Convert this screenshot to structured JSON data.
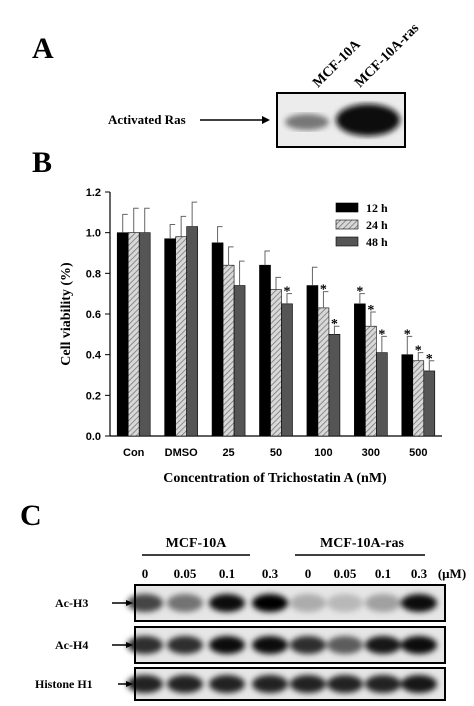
{
  "panel_a": {
    "label": "A",
    "lanes": [
      "MCF-10A",
      "MCF-10A-ras"
    ],
    "row": "Activated Ras"
  },
  "chart_data": {
    "type": "bar",
    "panel_label": "B",
    "categories": [
      "Con",
      "DMSO",
      "25",
      "50",
      "100",
      "300",
      "500"
    ],
    "x_label": "Concentration of Trichostatin A (nM)",
    "y_label": "Cell viability (%)",
    "ylim": [
      0,
      1.2
    ],
    "yticks": [
      {
        "value": 0,
        "label": "0.0"
      },
      {
        "value": 0.2,
        "label": "0.2"
      },
      {
        "value": 0.4,
        "label": "0.4"
      },
      {
        "value": 0.6,
        "label": "0.6"
      },
      {
        "value": 0.8,
        "label": "0.8"
      },
      {
        "value": 1,
        "label": "1.0"
      },
      {
        "value": 1.2,
        "label": "1.2"
      }
    ],
    "grid": false,
    "legend": "upper right",
    "series": [
      {
        "name": "12 h",
        "color": "#000000",
        "hatch": false,
        "values": [
          1.0,
          0.97,
          0.95,
          0.84,
          0.74,
          0.65,
          0.4
        ],
        "errors": [
          0.09,
          0.07,
          0.08,
          0.07,
          0.09,
          0.05,
          0.09
        ],
        "annotations": [
          null,
          null,
          null,
          null,
          null,
          "*",
          "*"
        ]
      },
      {
        "name": "24 h",
        "color": "#c8c8c8",
        "hatch": true,
        "values": [
          1.0,
          0.98,
          0.84,
          0.72,
          0.63,
          0.54,
          0.37
        ],
        "errors": [
          0.12,
          0.1,
          0.09,
          0.06,
          0.08,
          0.07,
          0.04
        ],
        "annotations": [
          null,
          null,
          null,
          null,
          "*",
          "*",
          "*"
        ]
      },
      {
        "name": "48 h",
        "color": "#555555",
        "hatch": false,
        "values": [
          1.0,
          1.03,
          0.74,
          0.65,
          0.5,
          0.41,
          0.32
        ],
        "errors": [
          0.12,
          0.12,
          0.12,
          0.05,
          0.04,
          0.08,
          0.05
        ],
        "annotations": [
          null,
          null,
          null,
          "*",
          "*",
          "*",
          "*"
        ]
      }
    ]
  },
  "panel_c": {
    "label": "C",
    "groups": [
      "MCF-10A",
      "MCF-10A-ras"
    ],
    "doses": [
      "0",
      "0.05",
      "0.1",
      "0.3",
      "0",
      "0.05",
      "0.1",
      "0.3"
    ],
    "unit": "(μM)",
    "rows": [
      "Ac-H3",
      "Ac-H4",
      "Histone H1"
    ]
  }
}
